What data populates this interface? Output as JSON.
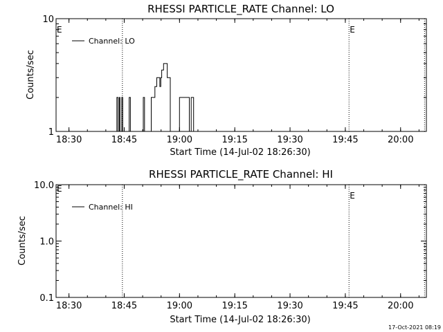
{
  "chart_data": [
    {
      "type": "line",
      "title": "RHESSI PARTICLE_RATE Channel: LO",
      "xlabel": "Start Time (14-Jul-02 18:26:30)",
      "ylabel": "Counts/sec",
      "x_ticks": [
        "18:30",
        "18:45",
        "19:00",
        "19:15",
        "19:30",
        "19:45",
        "20:00"
      ],
      "y_ticks": [
        "1",
        "10"
      ],
      "y_scale": "log",
      "ylim": [
        1,
        10
      ],
      "xlim_minutes": [
        "18:26:30",
        "20:07:00"
      ],
      "legend": "top-left",
      "series": [
        {
          "name": "Channel: LO",
          "points": [
            [
              "18:43:00",
              1
            ],
            [
              "18:43:00",
              2
            ],
            [
              "18:43:20",
              2
            ],
            [
              "18:43:20",
              1
            ],
            [
              "18:43:40",
              1
            ],
            [
              "18:43:40",
              2
            ],
            [
              "18:43:50",
              2
            ],
            [
              "18:43:50",
              1
            ],
            [
              "18:44:20",
              1
            ],
            [
              "18:44:20",
              2
            ],
            [
              "18:44:35",
              2
            ],
            [
              "18:44:35",
              1
            ],
            [
              "18:46:20",
              1
            ],
            [
              "18:46:20",
              2
            ],
            [
              "18:46:40",
              2
            ],
            [
              "18:46:40",
              1
            ],
            [
              "18:50:10",
              1
            ],
            [
              "18:50:10",
              2
            ],
            [
              "18:50:30",
              2
            ],
            [
              "18:50:30",
              1
            ],
            [
              "18:52:20",
              1
            ],
            [
              "18:52:20",
              2
            ],
            [
              "18:53:20",
              2
            ],
            [
              "18:53:20",
              2.5
            ],
            [
              "18:53:50",
              2.5
            ],
            [
              "18:53:50",
              3
            ],
            [
              "18:54:40",
              3
            ],
            [
              "18:54:40",
              2.5
            ],
            [
              "18:54:55",
              2.5
            ],
            [
              "18:54:55",
              3
            ],
            [
              "18:55:10",
              3
            ],
            [
              "18:55:10",
              3.5
            ],
            [
              "18:55:40",
              3.5
            ],
            [
              "18:55:40",
              4
            ],
            [
              "18:56:40",
              4
            ],
            [
              "18:56:40",
              3
            ],
            [
              "18:57:30",
              3
            ],
            [
              "18:57:30",
              1
            ],
            [
              "18:58:00",
              1
            ],
            [
              "19:00:00",
              1
            ],
            [
              "19:00:00",
              2
            ],
            [
              "19:02:40",
              2
            ],
            [
              "19:02:40",
              1
            ],
            [
              "19:03:10",
              1
            ],
            [
              "19:03:10",
              2
            ],
            [
              "19:03:50",
              2
            ],
            [
              "19:03:50",
              1
            ]
          ]
        }
      ],
      "markers": [
        {
          "time": "18:44:30",
          "label": ""
        },
        {
          "time": "19:46:00",
          "label": "E"
        },
        {
          "time": "20:06:30",
          "label": ""
        }
      ],
      "edge_flag": "E"
    },
    {
      "type": "line",
      "title": "RHESSI PARTICLE_RATE Channel: HI",
      "xlabel": "Start Time (14-Jul-02 18:26:30)",
      "ylabel": "Counts/sec",
      "x_ticks": [
        "18:30",
        "18:45",
        "19:00",
        "19:15",
        "19:30",
        "19:45",
        "20:00"
      ],
      "y_ticks": [
        "0.1",
        "1.0",
        "10.0"
      ],
      "y_scale": "log",
      "ylim": [
        0.1,
        10
      ],
      "legend": "top-left",
      "series": [
        {
          "name": "Channel: HI",
          "points": []
        }
      ],
      "markers": [
        {
          "time": "18:44:30",
          "label": ""
        },
        {
          "time": "19:46:00",
          "label": "E"
        },
        {
          "time": "20:06:30",
          "label": ""
        }
      ],
      "edge_flag": "E"
    }
  ],
  "footer": {
    "timestamp": "17-Oct-2021 08:19"
  }
}
